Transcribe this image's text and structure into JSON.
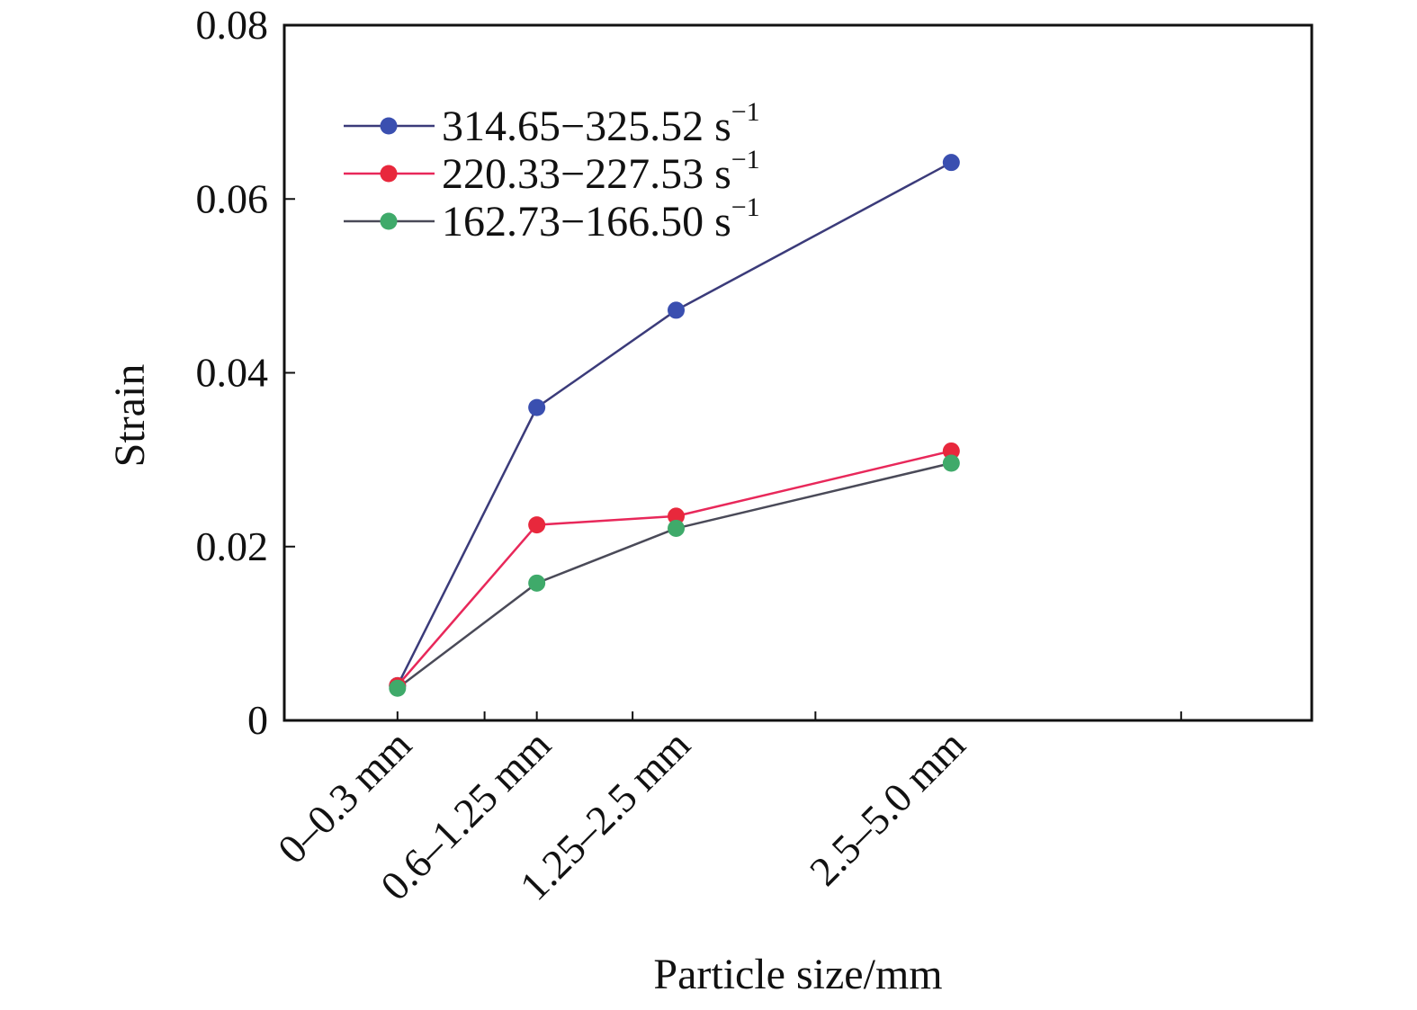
{
  "chart_data": {
    "type": "line",
    "xlabel": "Particle size/mm",
    "ylabel": "Strain",
    "ylim": [
      0,
      0.08
    ],
    "yticks": [
      "0",
      "0.02",
      "0.04",
      "0.06",
      "0.08"
    ],
    "categories": [
      "0–0.3 mm",
      "0.6–1.25 mm",
      "1.25–2.5 mm",
      "2.5–5.0 mm"
    ],
    "x": [
      0.45,
      1.25,
      2.05,
      3.63
    ],
    "xlim": [
      -0.2,
      5.7
    ],
    "minor_ticks_x": [
      0.45,
      0.95,
      1.25,
      1.8,
      2.85,
      4.95
    ],
    "legend_position": "top-left",
    "grid": false,
    "series": [
      {
        "name": "314.65−325.52 s",
        "superscript": "−1",
        "color": "#3a4fb0",
        "line_color": "#3b3b7a",
        "values": [
          0.004,
          0.036,
          0.0472,
          0.0642
        ]
      },
      {
        "name": "220.33−227.53 s",
        "superscript": "−1",
        "color": "#e8283c",
        "line_color": "#e8285a",
        "values": [
          0.004,
          0.0225,
          0.0235,
          0.031
        ]
      },
      {
        "name": "162.73−166.50 s",
        "superscript": "−1",
        "color": "#3faa6a",
        "line_color": "#4a4a58",
        "values": [
          0.0037,
          0.0158,
          0.0221,
          0.0296
        ]
      }
    ]
  }
}
